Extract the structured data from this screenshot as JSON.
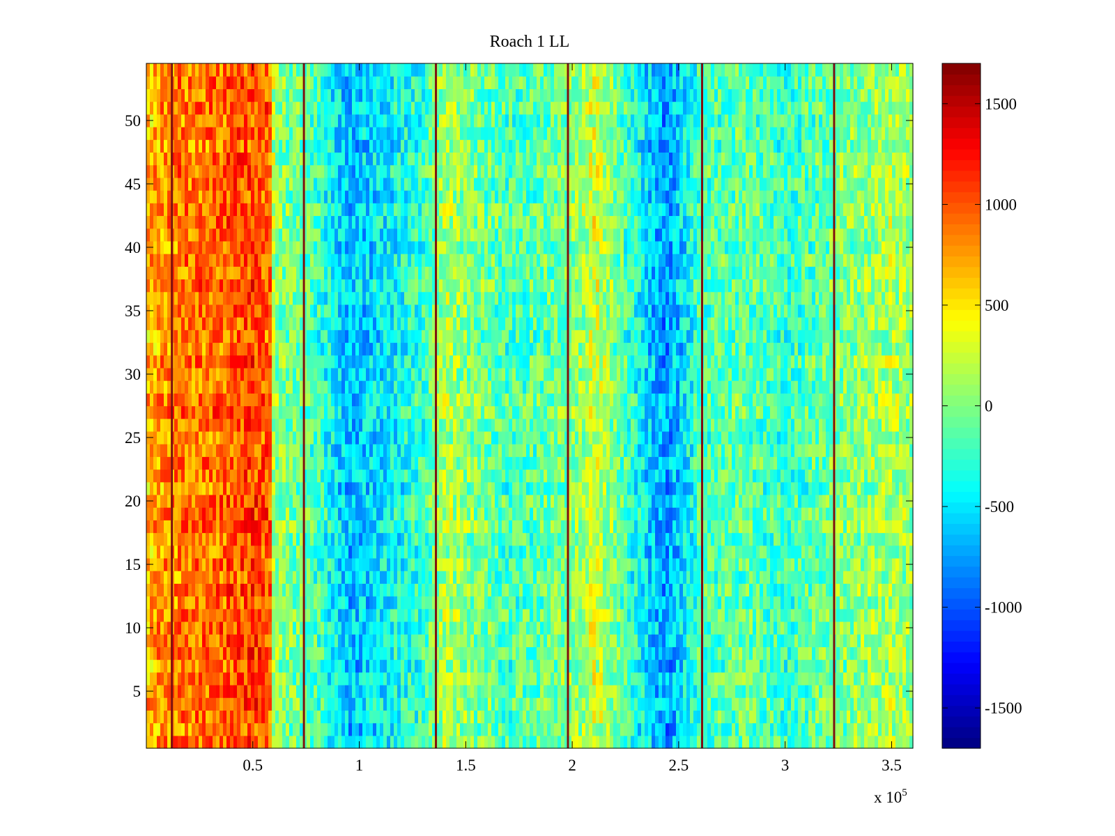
{
  "chart_data": {
    "type": "heatmap",
    "title": "Roach 1 LL",
    "xlabel": "",
    "ylabel": "",
    "x_multiplier_label": {
      "base": "x 10",
      "exponent": "5"
    },
    "xlim": [
      0,
      3.6
    ],
    "ylim": [
      0.5,
      54.5
    ],
    "x_ticks": [
      0.5,
      1,
      1.5,
      2,
      2.5,
      3,
      3.5
    ],
    "x_tick_labels": [
      "0.5",
      "1",
      "1.5",
      "2",
      "2.5",
      "3",
      "3.5"
    ],
    "y_ticks": [
      5,
      10,
      15,
      20,
      25,
      30,
      35,
      40,
      45,
      50
    ],
    "y_tick_labels": [
      "5",
      "10",
      "15",
      "20",
      "25",
      "30",
      "35",
      "40",
      "45",
      "50"
    ],
    "rows": 54,
    "colormap": "jet",
    "colorbar": {
      "clim": [
        -1700,
        1700
      ],
      "ticks": [
        -1500,
        -1000,
        -500,
        0,
        500,
        1000,
        1500
      ],
      "tick_labels": [
        "-1500",
        "-1000",
        "-500",
        "0",
        "500",
        "1000",
        "1500"
      ],
      "placement": "right"
    },
    "column_profile": [
      {
        "x": 0.0,
        "value": 650
      },
      {
        "x": 0.12,
        "value": 850
      },
      {
        "x": 0.3,
        "value": 900
      },
      {
        "x": 0.5,
        "value": 1050
      },
      {
        "x": 0.58,
        "value": 950
      },
      {
        "x": 0.6,
        "value": 50
      },
      {
        "x": 0.8,
        "value": -200
      },
      {
        "x": 0.95,
        "value": -650
      },
      {
        "x": 1.05,
        "value": -550
      },
      {
        "x": 1.3,
        "value": -250
      },
      {
        "x": 1.4,
        "value": 150
      },
      {
        "x": 1.7,
        "value": -200
      },
      {
        "x": 1.9,
        "value": -100
      },
      {
        "x": 2.05,
        "value": 100
      },
      {
        "x": 2.1,
        "value": 300
      },
      {
        "x": 2.25,
        "value": -200
      },
      {
        "x": 2.44,
        "value": -800
      },
      {
        "x": 2.6,
        "value": -200
      },
      {
        "x": 2.8,
        "value": -100
      },
      {
        "x": 3.0,
        "value": -250
      },
      {
        "x": 3.3,
        "value": 0
      },
      {
        "x": 3.5,
        "value": 150
      },
      {
        "x": 3.6,
        "value": 50
      }
    ],
    "bright_stripes_x": [
      0.12,
      0.74,
      1.36,
      1.98,
      2.61,
      3.23
    ]
  }
}
